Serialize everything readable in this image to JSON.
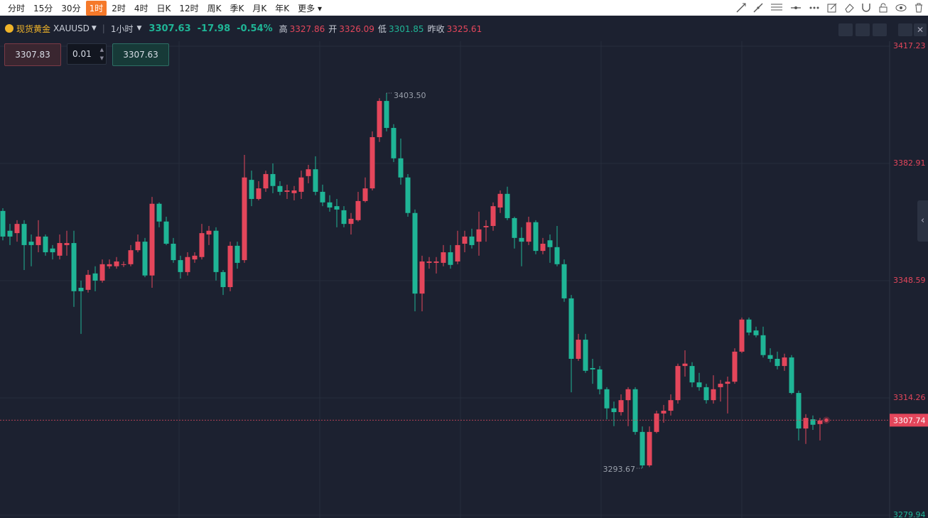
{
  "toolbar": {
    "periods": [
      "分时",
      "15分",
      "30分",
      "1时",
      "2时",
      "4时",
      "日K",
      "12时",
      "周K",
      "季K",
      "月K",
      "年K"
    ],
    "active": 3,
    "more": "更多"
  },
  "header": {
    "name": "现货黄金",
    "symbol": "XAUUSD",
    "period": "1小时",
    "price": "3307.63",
    "change": "-17.98",
    "change_pct": "-0.54%",
    "stats": [
      {
        "label": "高",
        "value": "3327.86"
      },
      {
        "label": "开",
        "value": "3326.09"
      },
      {
        "label": "低",
        "value": "3301.85"
      },
      {
        "label": "昨收",
        "value": "3325.61"
      }
    ]
  },
  "order": {
    "sell": "3307.83",
    "qty": "0.01",
    "buy": "3307.63"
  },
  "chart_data": {
    "type": "candlestick",
    "up_color": "#e4465b",
    "down_color": "#1fb596",
    "ylim": [
      3279.1,
      3418.69
    ],
    "yticks": [
      3279.94,
      3314.26,
      3348.59,
      3382.91,
      3417.23
    ],
    "last_price": 3307.74,
    "max_label": "3403.50",
    "min_label": "3293.67",
    "open": [
      3369.0,
      3363.2,
      3362.5,
      3365.2,
      3360.0,
      3359.0,
      3361.5,
      3358.0,
      3355.9,
      3359.0,
      3359.6,
      3346.5,
      3345.9,
      3350.7,
      3348.6,
      3352.8,
      3352.8,
      3353.2,
      3353.4,
      3357.5,
      3360.0,
      3350.1,
      3371.1,
      3365.9,
      3359.4,
      3354.6,
      3351.1,
      3354.8,
      3355.5,
      3362.1,
      3363.2,
      3351.1,
      3346.7,
      3358.8,
      3354.6,
      3378.1,
      3372.5,
      3375.6,
      3379.8,
      3376.3,
      3374.6,
      3374.2,
      3374.6,
      3379.2,
      3381.2,
      3374.6,
      3371.5,
      3370.4,
      3369.2,
      3365.2,
      3366.3,
      3371.9,
      3375.6,
      3390.6,
      3401.2,
      3393.3,
      3384.4,
      3378.8,
      3368.4,
      3344.8,
      3353.8,
      3353.8,
      3353.8,
      3356.9,
      3354.2,
      3359.4,
      3361.5,
      3360.0,
      3364.2,
      3364.6,
      3370.0,
      3374.0,
      3366.9,
      3361.1,
      3360.0,
      3365.7,
      3357.3,
      3360.4,
      3358.4,
      3353.4,
      3343.4,
      3325.7,
      3331.3,
      3323.0,
      3322.6,
      3316.8,
      3311.2,
      3310.1,
      3313.6,
      3316.8,
      3304.3,
      3294.5,
      3304.3,
      3309.7,
      3310.5,
      3313.6,
      3323.6,
      3323.6,
      3318.8,
      3317.4,
      3313.6,
      3317.4,
      3318.4,
      3319.0,
      3327.8,
      3337.2,
      3334.0,
      3332.6,
      3326.8,
      3325.7,
      3323.6,
      3326.1,
      3315.7,
      3305.3,
      3308.0,
      3306.6
    ],
    "high": [
      3369.8,
      3365.2,
      3366.3,
      3366.3,
      3362.1,
      3366.3,
      3362.1,
      3359.0,
      3362.1,
      3363.2,
      3363.2,
      3348.6,
      3351.7,
      3352.8,
      3354.8,
      3354.8,
      3355.5,
      3354.2,
      3359.0,
      3362.1,
      3361.1,
      3373.1,
      3371.5,
      3367.3,
      3361.1,
      3355.9,
      3356.9,
      3356.9,
      3365.2,
      3364.6,
      3364.2,
      3351.7,
      3360.0,
      3360.0,
      3385.4,
      3380.8,
      3377.7,
      3380.8,
      3382.9,
      3377.7,
      3376.7,
      3376.3,
      3380.8,
      3382.5,
      3385.0,
      3376.7,
      3373.6,
      3372.5,
      3370.4,
      3368.4,
      3374.6,
      3378.8,
      3392.3,
      3402.0,
      3403.5,
      3394.4,
      3390.2,
      3379.8,
      3369.4,
      3355.9,
      3355.5,
      3355.5,
      3359.0,
      3359.0,
      3363.2,
      3363.2,
      3363.8,
      3368.8,
      3366.3,
      3371.5,
      3375.0,
      3376.1,
      3367.3,
      3364.2,
      3367.3,
      3366.3,
      3361.1,
      3362.1,
      3364.6,
      3354.8,
      3344.4,
      3333.0,
      3333.0,
      3325.7,
      3323.6,
      3317.4,
      3313.2,
      3315.3,
      3317.4,
      3317.4,
      3305.9,
      3305.9,
      3310.5,
      3312.2,
      3315.3,
      3324.3,
      3328.2,
      3324.7,
      3321.6,
      3318.4,
      3320.9,
      3319.5,
      3320.5,
      3328.8,
      3337.8,
      3337.8,
      3335.1,
      3335.1,
      3328.8,
      3327.8,
      3327.2,
      3326.8,
      3316.4,
      3309.5,
      3309.1,
      3308.4
    ],
    "low": [
      3360.4,
      3359.0,
      3360.0,
      3351.7,
      3352.8,
      3356.9,
      3355.9,
      3354.8,
      3354.8,
      3355.9,
      3340.9,
      3333.0,
      3345.1,
      3345.5,
      3348.0,
      3352.1,
      3352.1,
      3352.6,
      3352.8,
      3356.9,
      3349.6,
      3346.5,
      3364.2,
      3359.0,
      3353.8,
      3349.2,
      3350.1,
      3353.8,
      3354.8,
      3359.0,
      3348.6,
      3344.4,
      3345.5,
      3352.1,
      3353.8,
      3370.4,
      3372.1,
      3374.6,
      3374.2,
      3373.6,
      3372.5,
      3372.1,
      3372.5,
      3377.1,
      3373.6,
      3370.4,
      3368.8,
      3364.2,
      3364.2,
      3362.1,
      3365.9,
      3371.5,
      3375.0,
      3389.2,
      3392.3,
      3383.3,
      3376.7,
      3367.3,
      3339.6,
      3339.6,
      3352.1,
      3350.7,
      3352.8,
      3352.1,
      3353.4,
      3356.9,
      3358.0,
      3355.9,
      3360.0,
      3363.2,
      3368.4,
      3366.3,
      3358.0,
      3352.8,
      3359.0,
      3356.3,
      3356.3,
      3353.8,
      3352.8,
      3342.4,
      3315.9,
      3325.1,
      3321.6,
      3318.4,
      3315.3,
      3308.0,
      3306.0,
      3309.1,
      3306.0,
      3303.5,
      3293.67,
      3294.0,
      3303.9,
      3307.0,
      3309.1,
      3312.6,
      3320.5,
      3317.4,
      3316.4,
      3312.6,
      3312.6,
      3313.2,
      3309.7,
      3318.4,
      3327.4,
      3332.6,
      3332.0,
      3326.1,
      3324.7,
      3322.6,
      3322.2,
      3315.3,
      3301.8,
      3300.8,
      3304.9,
      3301.8
    ],
    "close": [
      3361.5,
      3361.5,
      3365.2,
      3359.0,
      3359.0,
      3361.5,
      3356.9,
      3356.9,
      3359.6,
      3359.6,
      3345.5,
      3345.5,
      3350.3,
      3348.6,
      3353.4,
      3353.4,
      3354.2,
      3353.4,
      3357.5,
      3360.0,
      3350.1,
      3371.1,
      3365.9,
      3359.4,
      3354.6,
      3351.1,
      3355.5,
      3355.9,
      3362.5,
      3363.2,
      3351.1,
      3346.7,
      3358.8,
      3353.8,
      3378.8,
      3372.5,
      3375.6,
      3379.8,
      3376.3,
      3374.6,
      3375.0,
      3375.0,
      3378.8,
      3381.2,
      3374.6,
      3371.5,
      3370.0,
      3369.4,
      3365.2,
      3366.7,
      3371.9,
      3375.6,
      3390.6,
      3401.2,
      3393.3,
      3384.4,
      3378.8,
      3368.4,
      3344.8,
      3354.2,
      3354.2,
      3354.2,
      3356.9,
      3353.2,
      3359.0,
      3361.5,
      3359.0,
      3363.6,
      3364.6,
      3370.4,
      3374.0,
      3366.9,
      3361.1,
      3360.0,
      3365.7,
      3357.3,
      3359.4,
      3358.4,
      3353.4,
      3343.4,
      3325.7,
      3331.3,
      3322.2,
      3322.6,
      3316.8,
      3311.2,
      3310.1,
      3313.6,
      3316.8,
      3304.3,
      3294.5,
      3304.3,
      3309.7,
      3310.5,
      3313.6,
      3323.6,
      3324.3,
      3318.8,
      3317.4,
      3313.6,
      3316.8,
      3318.4,
      3319.0,
      3327.8,
      3337.2,
      3333.4,
      3332.6,
      3326.8,
      3325.7,
      3323.6,
      3326.1,
      3315.7,
      3305.3,
      3308.4,
      3306.4,
      3307.63
    ]
  }
}
